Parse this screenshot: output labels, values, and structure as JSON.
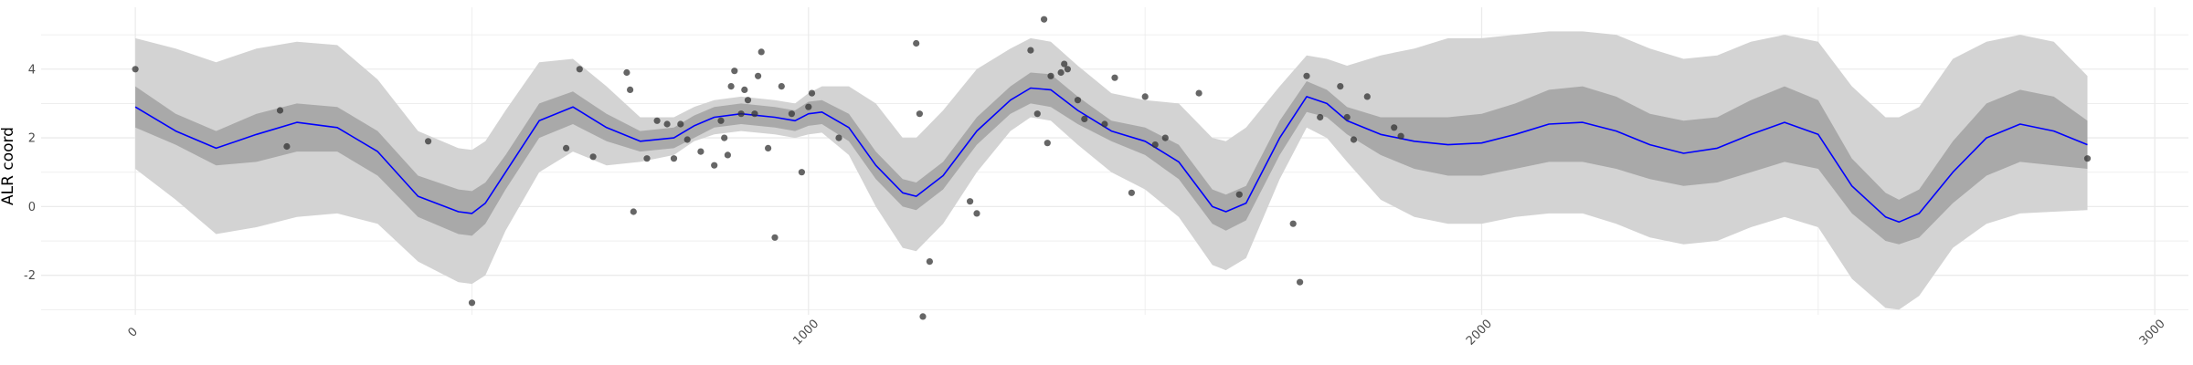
{
  "chart_data": {
    "type": "line",
    "title": "",
    "xlabel": "",
    "ylabel": "ALR coord",
    "xlim": [
      -140,
      3050
    ],
    "ylim": [
      -3.15,
      5.8
    ],
    "x_ticks": [
      {
        "value": 0,
        "label": "0"
      },
      {
        "value": 1000,
        "label": "1000"
      },
      {
        "value": 2000,
        "label": "2000"
      },
      {
        "value": 3000,
        "label": "3000"
      }
    ],
    "y_ticks": [
      {
        "value": -2,
        "label": "-2"
      },
      {
        "value": 0,
        "label": "0"
      },
      {
        "value": 2,
        "label": "2"
      },
      {
        "value": 4,
        "label": "4"
      }
    ],
    "grid": true,
    "colors": {
      "mean_line": "#0000ff",
      "inner_band": "#a9a9a9",
      "outer_band": "#d3d3d3",
      "points": "#333333",
      "grid": "#ebebeb"
    },
    "series": [
      {
        "role": "posterior-mean",
        "x": [
          0,
          60,
          120,
          180,
          240,
          300,
          360,
          420,
          480,
          500,
          520,
          550,
          600,
          650,
          700,
          750,
          800,
          830,
          860,
          900,
          950,
          980,
          1000,
          1020,
          1060,
          1100,
          1140,
          1160,
          1200,
          1250,
          1300,
          1330,
          1360,
          1400,
          1450,
          1500,
          1550,
          1600,
          1620,
          1650,
          1700,
          1740,
          1770,
          1800,
          1850,
          1900,
          1950,
          2000,
          2050,
          2100,
          2150,
          2200,
          2250,
          2300,
          2350,
          2400,
          2450,
          2500,
          2550,
          2600,
          2620,
          2650,
          2700,
          2750,
          2800,
          2850,
          2900
        ],
        "y": [
          2.9,
          2.2,
          1.7,
          2.1,
          2.45,
          2.3,
          1.6,
          0.3,
          -0.15,
          -0.2,
          0.1,
          1.0,
          2.5,
          2.9,
          2.3,
          1.9,
          2.0,
          2.35,
          2.6,
          2.7,
          2.6,
          2.5,
          2.7,
          2.75,
          2.3,
          1.2,
          0.4,
          0.3,
          0.9,
          2.2,
          3.1,
          3.45,
          3.4,
          2.8,
          2.2,
          1.9,
          1.3,
          0.0,
          -0.15,
          0.1,
          2.0,
          3.2,
          3.0,
          2.5,
          2.1,
          1.9,
          1.8,
          1.85,
          2.1,
          2.4,
          2.45,
          2.2,
          1.8,
          1.55,
          1.7,
          2.1,
          2.45,
          2.1,
          0.6,
          -0.3,
          -0.45,
          -0.2,
          1.0,
          2.0,
          2.4,
          2.2,
          1.8
        ]
      },
      {
        "role": "inner-band",
        "x": [
          0,
          60,
          120,
          180,
          240,
          300,
          360,
          420,
          480,
          500,
          520,
          550,
          600,
          650,
          700,
          750,
          800,
          830,
          860,
          900,
          950,
          980,
          1000,
          1020,
          1060,
          1100,
          1140,
          1160,
          1200,
          1250,
          1300,
          1330,
          1360,
          1400,
          1450,
          1500,
          1550,
          1600,
          1620,
          1650,
          1700,
          1740,
          1770,
          1800,
          1850,
          1900,
          1950,
          2000,
          2050,
          2100,
          2150,
          2200,
          2250,
          2300,
          2350,
          2400,
          2450,
          2500,
          2550,
          2600,
          2620,
          2650,
          2700,
          2750,
          2800,
          2850,
          2900
        ],
        "lower": [
          2.3,
          1.8,
          1.2,
          1.3,
          1.6,
          1.6,
          0.9,
          -0.3,
          -0.8,
          -0.85,
          -0.5,
          0.5,
          2.0,
          2.4,
          1.9,
          1.6,
          1.7,
          2.0,
          2.3,
          2.4,
          2.3,
          2.2,
          2.35,
          2.4,
          1.9,
          0.8,
          0.0,
          -0.1,
          0.5,
          1.8,
          2.7,
          3.0,
          2.9,
          2.4,
          1.9,
          1.5,
          0.8,
          -0.5,
          -0.7,
          -0.4,
          1.5,
          2.75,
          2.6,
          2.1,
          1.5,
          1.1,
          0.9,
          0.9,
          1.1,
          1.3,
          1.3,
          1.1,
          0.8,
          0.6,
          0.7,
          1.0,
          1.3,
          1.1,
          -0.2,
          -1.0,
          -1.1,
          -0.9,
          0.1,
          0.9,
          1.3,
          1.2,
          1.1
        ],
        "upper": [
          3.5,
          2.7,
          2.2,
          2.7,
          3.0,
          2.9,
          2.2,
          0.9,
          0.5,
          0.45,
          0.7,
          1.5,
          3.0,
          3.35,
          2.7,
          2.2,
          2.3,
          2.65,
          2.9,
          3.0,
          2.9,
          2.8,
          3.05,
          3.1,
          2.7,
          1.6,
          0.8,
          0.7,
          1.3,
          2.6,
          3.5,
          3.9,
          3.85,
          3.2,
          2.5,
          2.3,
          1.8,
          0.5,
          0.35,
          0.6,
          2.5,
          3.65,
          3.4,
          2.9,
          2.6,
          2.6,
          2.6,
          2.7,
          3.0,
          3.4,
          3.5,
          3.2,
          2.7,
          2.5,
          2.6,
          3.1,
          3.5,
          3.1,
          1.4,
          0.4,
          0.2,
          0.5,
          1.9,
          3.0,
          3.4,
          3.2,
          2.5
        ]
      },
      {
        "role": "outer-band",
        "x": [
          0,
          60,
          120,
          180,
          240,
          300,
          360,
          420,
          480,
          500,
          520,
          550,
          600,
          650,
          700,
          750,
          800,
          830,
          860,
          900,
          950,
          980,
          1000,
          1020,
          1060,
          1100,
          1140,
          1160,
          1200,
          1250,
          1300,
          1330,
          1360,
          1400,
          1450,
          1500,
          1550,
          1600,
          1620,
          1650,
          1700,
          1740,
          1770,
          1800,
          1850,
          1900,
          1950,
          2000,
          2050,
          2100,
          2150,
          2200,
          2250,
          2300,
          2350,
          2400,
          2450,
          2500,
          2550,
          2600,
          2620,
          2650,
          2700,
          2750,
          2800,
          2850,
          2900
        ],
        "lower": [
          1.1,
          0.2,
          -0.8,
          -0.6,
          -0.3,
          -0.2,
          -0.5,
          -1.6,
          -2.2,
          -2.25,
          -2.0,
          -0.7,
          1.0,
          1.6,
          1.2,
          1.3,
          1.5,
          1.9,
          2.1,
          2.2,
          2.1,
          2.0,
          2.1,
          2.15,
          1.5,
          0.0,
          -1.2,
          -1.3,
          -0.5,
          1.0,
          2.2,
          2.6,
          2.5,
          1.8,
          1.0,
          0.5,
          -0.3,
          -1.7,
          -1.85,
          -1.5,
          0.8,
          2.3,
          2.0,
          1.3,
          0.2,
          -0.3,
          -0.5,
          -0.5,
          -0.3,
          -0.2,
          -0.2,
          -0.5,
          -0.9,
          -1.1,
          -1.0,
          -0.6,
          -0.3,
          -0.6,
          -2.1,
          -2.95,
          -3.0,
          -2.6,
          -1.2,
          -0.5,
          -0.2,
          -0.15,
          -0.1
        ],
        "upper": [
          4.9,
          4.6,
          4.2,
          4.6,
          4.8,
          4.7,
          3.7,
          2.2,
          1.7,
          1.65,
          1.9,
          2.8,
          4.2,
          4.3,
          3.5,
          2.6,
          2.6,
          2.9,
          3.1,
          3.2,
          3.1,
          3.0,
          3.3,
          3.5,
          3.5,
          3.0,
          2.0,
          2.0,
          2.8,
          4.0,
          4.6,
          4.9,
          4.8,
          4.1,
          3.3,
          3.1,
          3.0,
          2.0,
          1.9,
          2.3,
          3.5,
          4.4,
          4.3,
          4.1,
          4.4,
          4.6,
          4.9,
          4.9,
          5.0,
          5.1,
          5.1,
          5.0,
          4.6,
          4.3,
          4.4,
          4.8,
          5.0,
          4.8,
          3.5,
          2.6,
          2.6,
          2.9,
          4.3,
          4.8,
          5.0,
          4.8,
          3.8
        ]
      }
    ],
    "points": {
      "x": [
        0,
        215,
        225,
        435,
        500,
        640,
        660,
        680,
        730,
        735,
        740,
        760,
        775,
        790,
        800,
        810,
        820,
        840,
        860,
        870,
        875,
        880,
        885,
        890,
        900,
        905,
        910,
        920,
        925,
        930,
        940,
        950,
        960,
        975,
        990,
        1000,
        1005,
        1045,
        1160,
        1165,
        1170,
        1180,
        1240,
        1250,
        1330,
        1340,
        1350,
        1355,
        1360,
        1375,
        1380,
        1385,
        1400,
        1410,
        1440,
        1455,
        1480,
        1500,
        1515,
        1530,
        1580,
        1640,
        1720,
        1730,
        1740,
        1760,
        1790,
        1800,
        1810,
        1830,
        1870,
        1880,
        2900
      ],
      "y": [
        4.0,
        2.8,
        1.75,
        1.9,
        -2.8,
        1.7,
        4.0,
        1.45,
        3.9,
        3.4,
        -0.15,
        1.4,
        2.5,
        2.4,
        1.4,
        2.4,
        1.95,
        1.6,
        1.2,
        2.5,
        2.0,
        1.5,
        3.5,
        3.95,
        2.7,
        3.4,
        3.1,
        2.7,
        3.8,
        4.5,
        1.7,
        -0.9,
        3.5,
        2.7,
        1.0,
        2.9,
        3.3,
        2.0,
        4.75,
        2.7,
        -3.2,
        -1.6,
        0.15,
        -0.2,
        4.55,
        2.7,
        5.45,
        1.85,
        3.8,
        3.9,
        4.15,
        4.0,
        3.1,
        2.55,
        2.4,
        3.75,
        0.4,
        3.2,
        1.8,
        2.0,
        3.3,
        0.35,
        -0.5,
        -2.2,
        3.8,
        2.6,
        3.5,
        2.6,
        1.95,
        3.2,
        2.3,
        2.05,
        1.4
      ]
    }
  }
}
